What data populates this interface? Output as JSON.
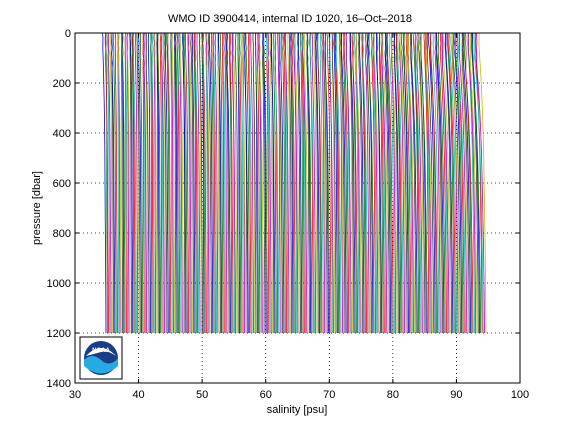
{
  "chart_data": {
    "type": "line",
    "title": "WMO ID 3900414, internal ID 1020, 16–Oct–2018",
    "xlabel": "salinity [psu]",
    "ylabel": "pressure [dbar]",
    "xlim": [
      30,
      100
    ],
    "ylim": [
      0,
      1400
    ],
    "y_reversed": true,
    "grid": true,
    "grid_style": "dotted",
    "xticks": [
      30,
      40,
      50,
      60,
      70,
      80,
      90,
      100
    ],
    "yticks": [
      0,
      200,
      400,
      600,
      800,
      1000,
      1200,
      1400
    ],
    "profile_offset_step_psu": 0.2,
    "profile_count": 300,
    "first_profile_deep_salinity": 34.9,
    "profile_max_pressure": 1200,
    "colors": [
      "#0000ff",
      "#008000",
      "#ff0000",
      "#00bfbf",
      "#bf00bf",
      "#bfbf00",
      "#404040"
    ],
    "logo_text": "NOAA"
  }
}
